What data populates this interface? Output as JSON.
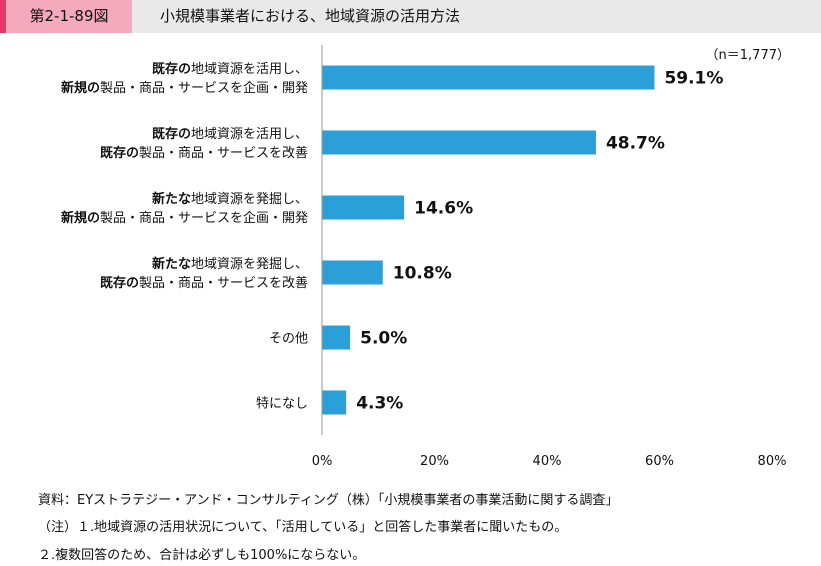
{
  "figure": {
    "number": "第2-1-89図",
    "title": "小規模事業者における、地域資源の活用方法"
  },
  "chart_data": {
    "type": "bar",
    "orientation": "horizontal",
    "sample_note": "（n＝1,777）",
    "categories": [
      [
        {
          "t": "既存の",
          "b": true
        },
        {
          "t": "地域資源を活用し、",
          "b": false
        },
        {
          "br": true
        },
        {
          "t": "新規の",
          "b": true
        },
        {
          "t": "製品・商品・サービスを企画・開発",
          "b": false
        }
      ],
      [
        {
          "t": "既存の",
          "b": true
        },
        {
          "t": "地域資源を活用し、",
          "b": false
        },
        {
          "br": true
        },
        {
          "t": "既存の",
          "b": true
        },
        {
          "t": "製品・商品・サービスを改善",
          "b": false
        }
      ],
      [
        {
          "t": "新たな",
          "b": true
        },
        {
          "t": "地域資源を発掘し、",
          "b": false
        },
        {
          "br": true
        },
        {
          "t": "新規の",
          "b": true
        },
        {
          "t": "製品・商品・サービスを企画・開発",
          "b": false
        }
      ],
      [
        {
          "t": "新たな",
          "b": true
        },
        {
          "t": "地域資源を発掘し、",
          "b": false
        },
        {
          "br": true
        },
        {
          "t": "既存の",
          "b": true
        },
        {
          "t": "製品・商品・サービスを改善",
          "b": false
        }
      ],
      [
        {
          "t": "その他",
          "b": false
        }
      ],
      [
        {
          "t": "特になし",
          "b": false
        }
      ]
    ],
    "values": [
      59.1,
      48.7,
      14.6,
      10.8,
      5.0,
      4.3
    ],
    "value_labels": [
      "59.1%",
      "48.7%",
      "14.6%",
      "10.8%",
      "5.0%",
      "4.3%"
    ],
    "xlim": [
      0,
      80
    ],
    "xticks": [
      0,
      20,
      40,
      60,
      80
    ],
    "xtick_labels": [
      "0%",
      "20%",
      "40%",
      "60%",
      "80%"
    ],
    "bar_color": "#2b9fd8",
    "grid": false
  },
  "notes": {
    "source": "資料：EYストラテジー・アンド・コンサルティング（株）「小規模事業者の事業活動に関する調査」",
    "note1": "（注）１.地域資源の活用状況について、「活用している」と回答した事業者に聞いたもの。",
    "note2": "２.複数回答のため、合計は必ずしも100%にならない。"
  }
}
